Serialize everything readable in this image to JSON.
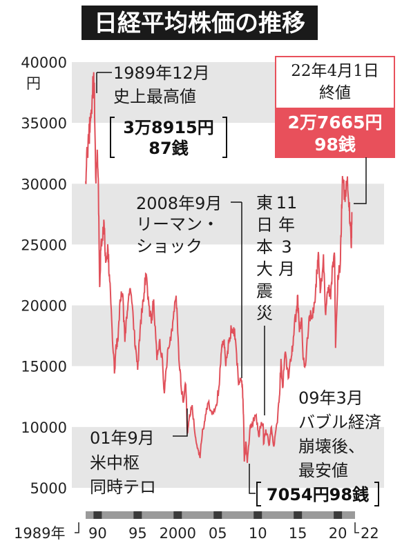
{
  "chart_data": {
    "type": "line",
    "title": "日経平均株価の推移",
    "y_unit": "円",
    "ylim": [
      5000,
      40000
    ],
    "y_ticks": [
      "40000",
      "35000",
      "30000",
      "25000",
      "20000",
      "15000",
      "10000",
      "5000"
    ],
    "x_start_label": "1989年",
    "x_ticks": [
      "90",
      "95",
      "2000",
      "05",
      "10",
      "15",
      "20"
    ],
    "x_end_label": "22",
    "grid": "alternating horizontal bands",
    "line_color": "#e0505a",
    "accent_color": "#e8505b",
    "title_bg": "#1a1a1a",
    "series": [
      {
        "points": [
          [
            1989.0,
            30200
          ],
          [
            1989.2,
            32500
          ],
          [
            1989.4,
            33800
          ],
          [
            1989.6,
            35200
          ],
          [
            1989.8,
            36800
          ],
          [
            1989.99,
            38915
          ],
          [
            1990.1,
            37200
          ],
          [
            1990.25,
            30500
          ],
          [
            1990.45,
            32800
          ],
          [
            1990.6,
            29500
          ],
          [
            1990.75,
            21500
          ],
          [
            1990.9,
            24500
          ],
          [
            1991.1,
            25500
          ],
          [
            1991.3,
            26800
          ],
          [
            1991.5,
            23500
          ],
          [
            1991.8,
            24500
          ],
          [
            1992.0,
            22000
          ],
          [
            1992.3,
            18000
          ],
          [
            1992.6,
            14400
          ],
          [
            1992.8,
            16800
          ],
          [
            1993.0,
            17000
          ],
          [
            1993.3,
            20500
          ],
          [
            1993.6,
            21000
          ],
          [
            1993.9,
            17000
          ],
          [
            1994.2,
            19500
          ],
          [
            1994.5,
            21300
          ],
          [
            1994.9,
            19500
          ],
          [
            1995.2,
            16500
          ],
          [
            1995.5,
            14700
          ],
          [
            1995.8,
            18000
          ],
          [
            1996.2,
            20500
          ],
          [
            1996.5,
            22600
          ],
          [
            1996.9,
            20000
          ],
          [
            1997.2,
            18500
          ],
          [
            1997.5,
            20500
          ],
          [
            1997.9,
            15500
          ],
          [
            1998.2,
            17000
          ],
          [
            1998.6,
            15500
          ],
          [
            1998.8,
            13000
          ],
          [
            1998.95,
            13800
          ],
          [
            1999.3,
            16500
          ],
          [
            1999.7,
            17800
          ],
          [
            1999.95,
            18900
          ],
          [
            2000.3,
            20800
          ],
          [
            2000.6,
            16500
          ],
          [
            2000.9,
            13500
          ],
          [
            2001.2,
            12000
          ],
          [
            2001.5,
            13500
          ],
          [
            2001.71,
            9500
          ],
          [
            2001.9,
            10500
          ],
          [
            2002.3,
            11800
          ],
          [
            2002.7,
            9200
          ],
          [
            2002.9,
            8500
          ],
          [
            2003.2,
            7800
          ],
          [
            2003.3,
            7600
          ],
          [
            2003.6,
            9800
          ],
          [
            2003.9,
            10500
          ],
          [
            2004.3,
            12000
          ],
          [
            2004.8,
            11000
          ],
          [
            2005.3,
            11800
          ],
          [
            2005.7,
            13500
          ],
          [
            2005.95,
            16200
          ],
          [
            2006.3,
            17200
          ],
          [
            2006.5,
            15000
          ],
          [
            2006.9,
            17000
          ],
          [
            2007.2,
            18000
          ],
          [
            2007.5,
            18200
          ],
          [
            2007.8,
            16500
          ],
          [
            2008.1,
            13500
          ],
          [
            2008.4,
            14000
          ],
          [
            2008.6,
            13000
          ],
          [
            2008.71,
            11000
          ],
          [
            2008.82,
            7162
          ],
          [
            2009.0,
            8800
          ],
          [
            2009.19,
            7054
          ],
          [
            2009.5,
            9700
          ],
          [
            2009.8,
            10300
          ],
          [
            2010.3,
            11000
          ],
          [
            2010.6,
            9300
          ],
          [
            2010.9,
            10200
          ],
          [
            2011.17,
            10300
          ],
          [
            2011.22,
            8600
          ],
          [
            2011.5,
            9800
          ],
          [
            2011.9,
            8500
          ],
          [
            2012.2,
            10000
          ],
          [
            2012.5,
            8400
          ],
          [
            2012.9,
            10300
          ],
          [
            2013.2,
            12500
          ],
          [
            2013.4,
            15600
          ],
          [
            2013.6,
            13200
          ],
          [
            2013.95,
            16200
          ],
          [
            2014.3,
            14000
          ],
          [
            2014.7,
            15800
          ],
          [
            2014.95,
            17400
          ],
          [
            2015.3,
            19500
          ],
          [
            2015.45,
            20800
          ],
          [
            2015.7,
            17800
          ],
          [
            2015.95,
            19000
          ],
          [
            2016.2,
            15500
          ],
          [
            2016.45,
            15000
          ],
          [
            2016.9,
            19000
          ],
          [
            2017.3,
            19200
          ],
          [
            2017.6,
            20200
          ],
          [
            2017.9,
            22800
          ],
          [
            2018.1,
            24100
          ],
          [
            2018.3,
            21000
          ],
          [
            2018.7,
            24200
          ],
          [
            2018.98,
            19200
          ],
          [
            2019.3,
            21500
          ],
          [
            2019.6,
            20500
          ],
          [
            2019.9,
            23600
          ],
          [
            2020.1,
            23900
          ],
          [
            2020.21,
            16500
          ],
          [
            2020.5,
            22500
          ],
          [
            2020.8,
            23300
          ],
          [
            2020.95,
            27400
          ],
          [
            2021.1,
            30400
          ],
          [
            2021.4,
            28500
          ],
          [
            2021.7,
            30600
          ],
          [
            2021.9,
            28300
          ],
          [
            2022.05,
            26500
          ],
          [
            2022.18,
            24700
          ],
          [
            2022.25,
            27666
          ]
        ]
      }
    ],
    "annotations": {
      "peak": {
        "lines": [
          "1989年12月",
          "史上最高値"
        ],
        "value_lines": [
          "3万8915円",
          "87銭"
        ]
      },
      "lehman": {
        "lines": [
          "2008年9月",
          "リーマン・",
          "ショック"
        ]
      },
      "quake": {
        "cols": [
          [
            "東",
            "日",
            "本",
            "大",
            "震",
            "災"
          ],
          [
            "11",
            "年",
            "3",
            "月"
          ]
        ]
      },
      "terror": {
        "lines": [
          "01年9月",
          "米中枢",
          "同時テロ"
        ]
      },
      "bubble_low": {
        "lines": [
          "09年3月",
          "バブル経済",
          "崩壊後、",
          "最安値"
        ],
        "value": "7054円98銭"
      },
      "close": {
        "lines": [
          "22年4月1日",
          "終値"
        ],
        "value_lines": [
          "2万7665円",
          "98銭"
        ]
      }
    }
  }
}
